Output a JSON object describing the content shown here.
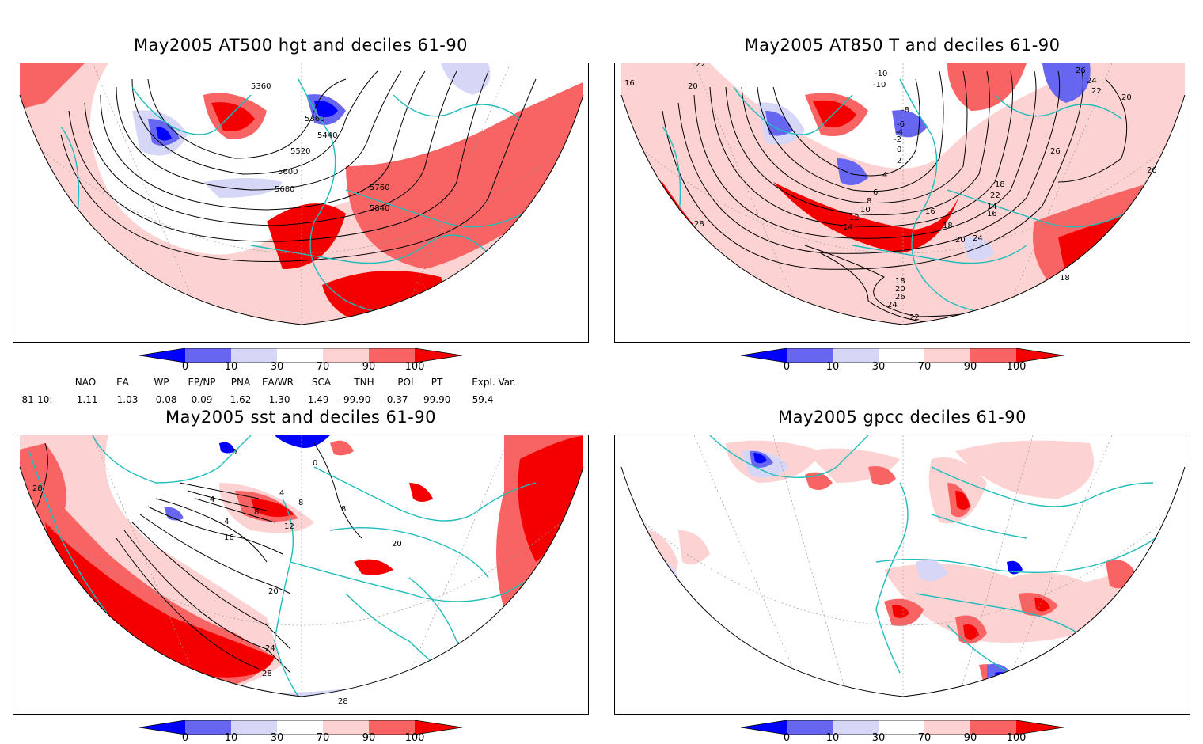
{
  "panels": [
    {
      "title": "May2005 AT500 hgt and deciles 61-90",
      "contour_labels": [
        "5360",
        "5360",
        "5440",
        "5520",
        "5600",
        "5680",
        "5760",
        "5840"
      ]
    },
    {
      "title": "May2005 AT850 T and deciles 61-90",
      "contour_labels": [
        "16",
        "20",
        "22",
        "26",
        "24",
        "22",
        "20",
        "-10",
        "-10",
        "-8",
        "-6",
        "-4",
        "-2",
        "0",
        "2",
        "4",
        "6",
        "8",
        "10",
        "12",
        "14",
        "16",
        "18",
        "22",
        "14",
        "16",
        "18",
        "20",
        "24",
        "26",
        "28",
        "26",
        "18",
        "18",
        "20",
        "26",
        "24",
        "22",
        "20",
        "18"
      ]
    },
    {
      "title": "May2005 sst and deciles 61-90",
      "contour_labels": [
        "28",
        "0",
        "0",
        "4",
        "8",
        "4",
        "4",
        "8",
        "8",
        "12",
        "16",
        "20",
        "20",
        "24",
        "28",
        "28"
      ]
    },
    {
      "title": "May2005 gpcc deciles 61-90",
      "contour_labels": []
    }
  ],
  "colorbar": {
    "labels": [
      "0",
      "10",
      "30",
      "70",
      "90",
      "100"
    ],
    "colors": [
      "#0000ff",
      "#6666f0",
      "#d6d6f7",
      "#ffffff",
      "#fdd2d2",
      "#f86464",
      "#f40000"
    ]
  },
  "indices": {
    "headers": [
      "NAO",
      "EA",
      "WP",
      "EP/NP",
      "PNA",
      "EA/WR",
      "SCA",
      "TNH",
      "POL",
      "PT",
      "Expl. Var."
    ],
    "period": "81-10:",
    "values": [
      "-1.11",
      "1.03",
      "-0.08",
      "0.09",
      "1.62",
      "-1.30",
      "-1.49",
      "-99.90",
      "-0.37",
      "-99.90",
      "59.4"
    ]
  },
  "style": {
    "coast_color": "#1fbcbc",
    "contour_color": "#000000"
  }
}
